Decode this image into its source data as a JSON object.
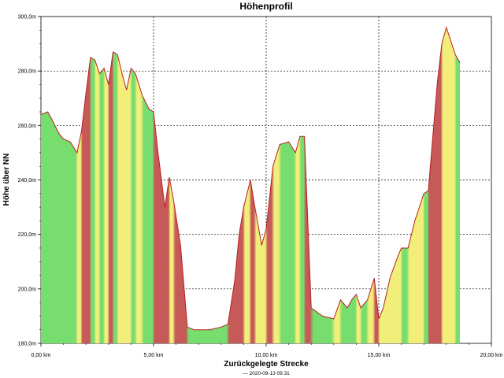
{
  "chart_data": {
    "type": "area",
    "title": "Höhenprofil",
    "xlabel": "Zurückgelegte Strecke",
    "ylabel": "Höhe über NN",
    "footnote": "— 2020-09-13 09.31",
    "xlim": [
      0,
      20
    ],
    "ylim": [
      180,
      300
    ],
    "x_ticks": [
      0,
      5,
      10,
      15,
      20
    ],
    "x_tick_labels": [
      "0,00 km",
      "5,00 km",
      "10,00 km",
      "15,00 km",
      "20,00 km"
    ],
    "y_ticks": [
      180,
      200,
      220,
      240,
      260,
      280,
      300
    ],
    "y_tick_labels": [
      "180,0m",
      "200,0m",
      "220,0m",
      "240,0m",
      "260,0m",
      "280,0m",
      "300,0m"
    ],
    "grid": true,
    "fill_colors": {
      "low": "#77dd6e",
      "mid": "#f2ee7a",
      "high": "#c65a58"
    },
    "line_color": "#b82020",
    "x": [
      0,
      0.3,
      0.5,
      0.8,
      1.0,
      1.3,
      1.6,
      1.8,
      2.0,
      2.2,
      2.4,
      2.6,
      2.8,
      3.0,
      3.2,
      3.4,
      3.6,
      3.8,
      4.0,
      4.2,
      4.5,
      4.8,
      5.0,
      5.2,
      5.5,
      5.7,
      5.9,
      6.2,
      6.5,
      6.8,
      7.0,
      7.5,
      8.0,
      8.3,
      8.6,
      8.8,
      9.0,
      9.3,
      9.5,
      9.8,
      10.0,
      10.3,
      10.6,
      11.0,
      11.3,
      11.5,
      11.7,
      12.0,
      12.5,
      13.0,
      13.3,
      13.6,
      13.8,
      14.0,
      14.2,
      14.5,
      14.8,
      15.0,
      15.2,
      15.5,
      15.8,
      16.0,
      16.3,
      16.6,
      16.8,
      17.0,
      17.2,
      17.4,
      17.6,
      17.8,
      18.0,
      18.2,
      18.4,
      18.6
    ],
    "y": [
      264,
      265,
      262,
      257,
      255,
      254,
      250,
      258,
      272,
      285,
      284,
      279,
      281,
      275,
      287,
      286,
      279,
      273,
      281,
      279,
      271,
      266,
      265,
      250,
      230,
      241,
      232,
      216,
      186,
      185,
      185,
      185,
      186,
      187,
      203,
      220,
      230,
      240,
      230,
      216,
      222,
      245,
      253,
      254,
      250,
      256,
      256,
      193,
      190,
      189,
      196,
      193,
      196,
      198,
      193,
      196,
      204,
      189,
      193,
      204,
      211,
      215,
      215,
      225,
      230,
      235,
      236,
      256,
      276,
      290,
      296,
      291,
      286,
      283
    ]
  }
}
